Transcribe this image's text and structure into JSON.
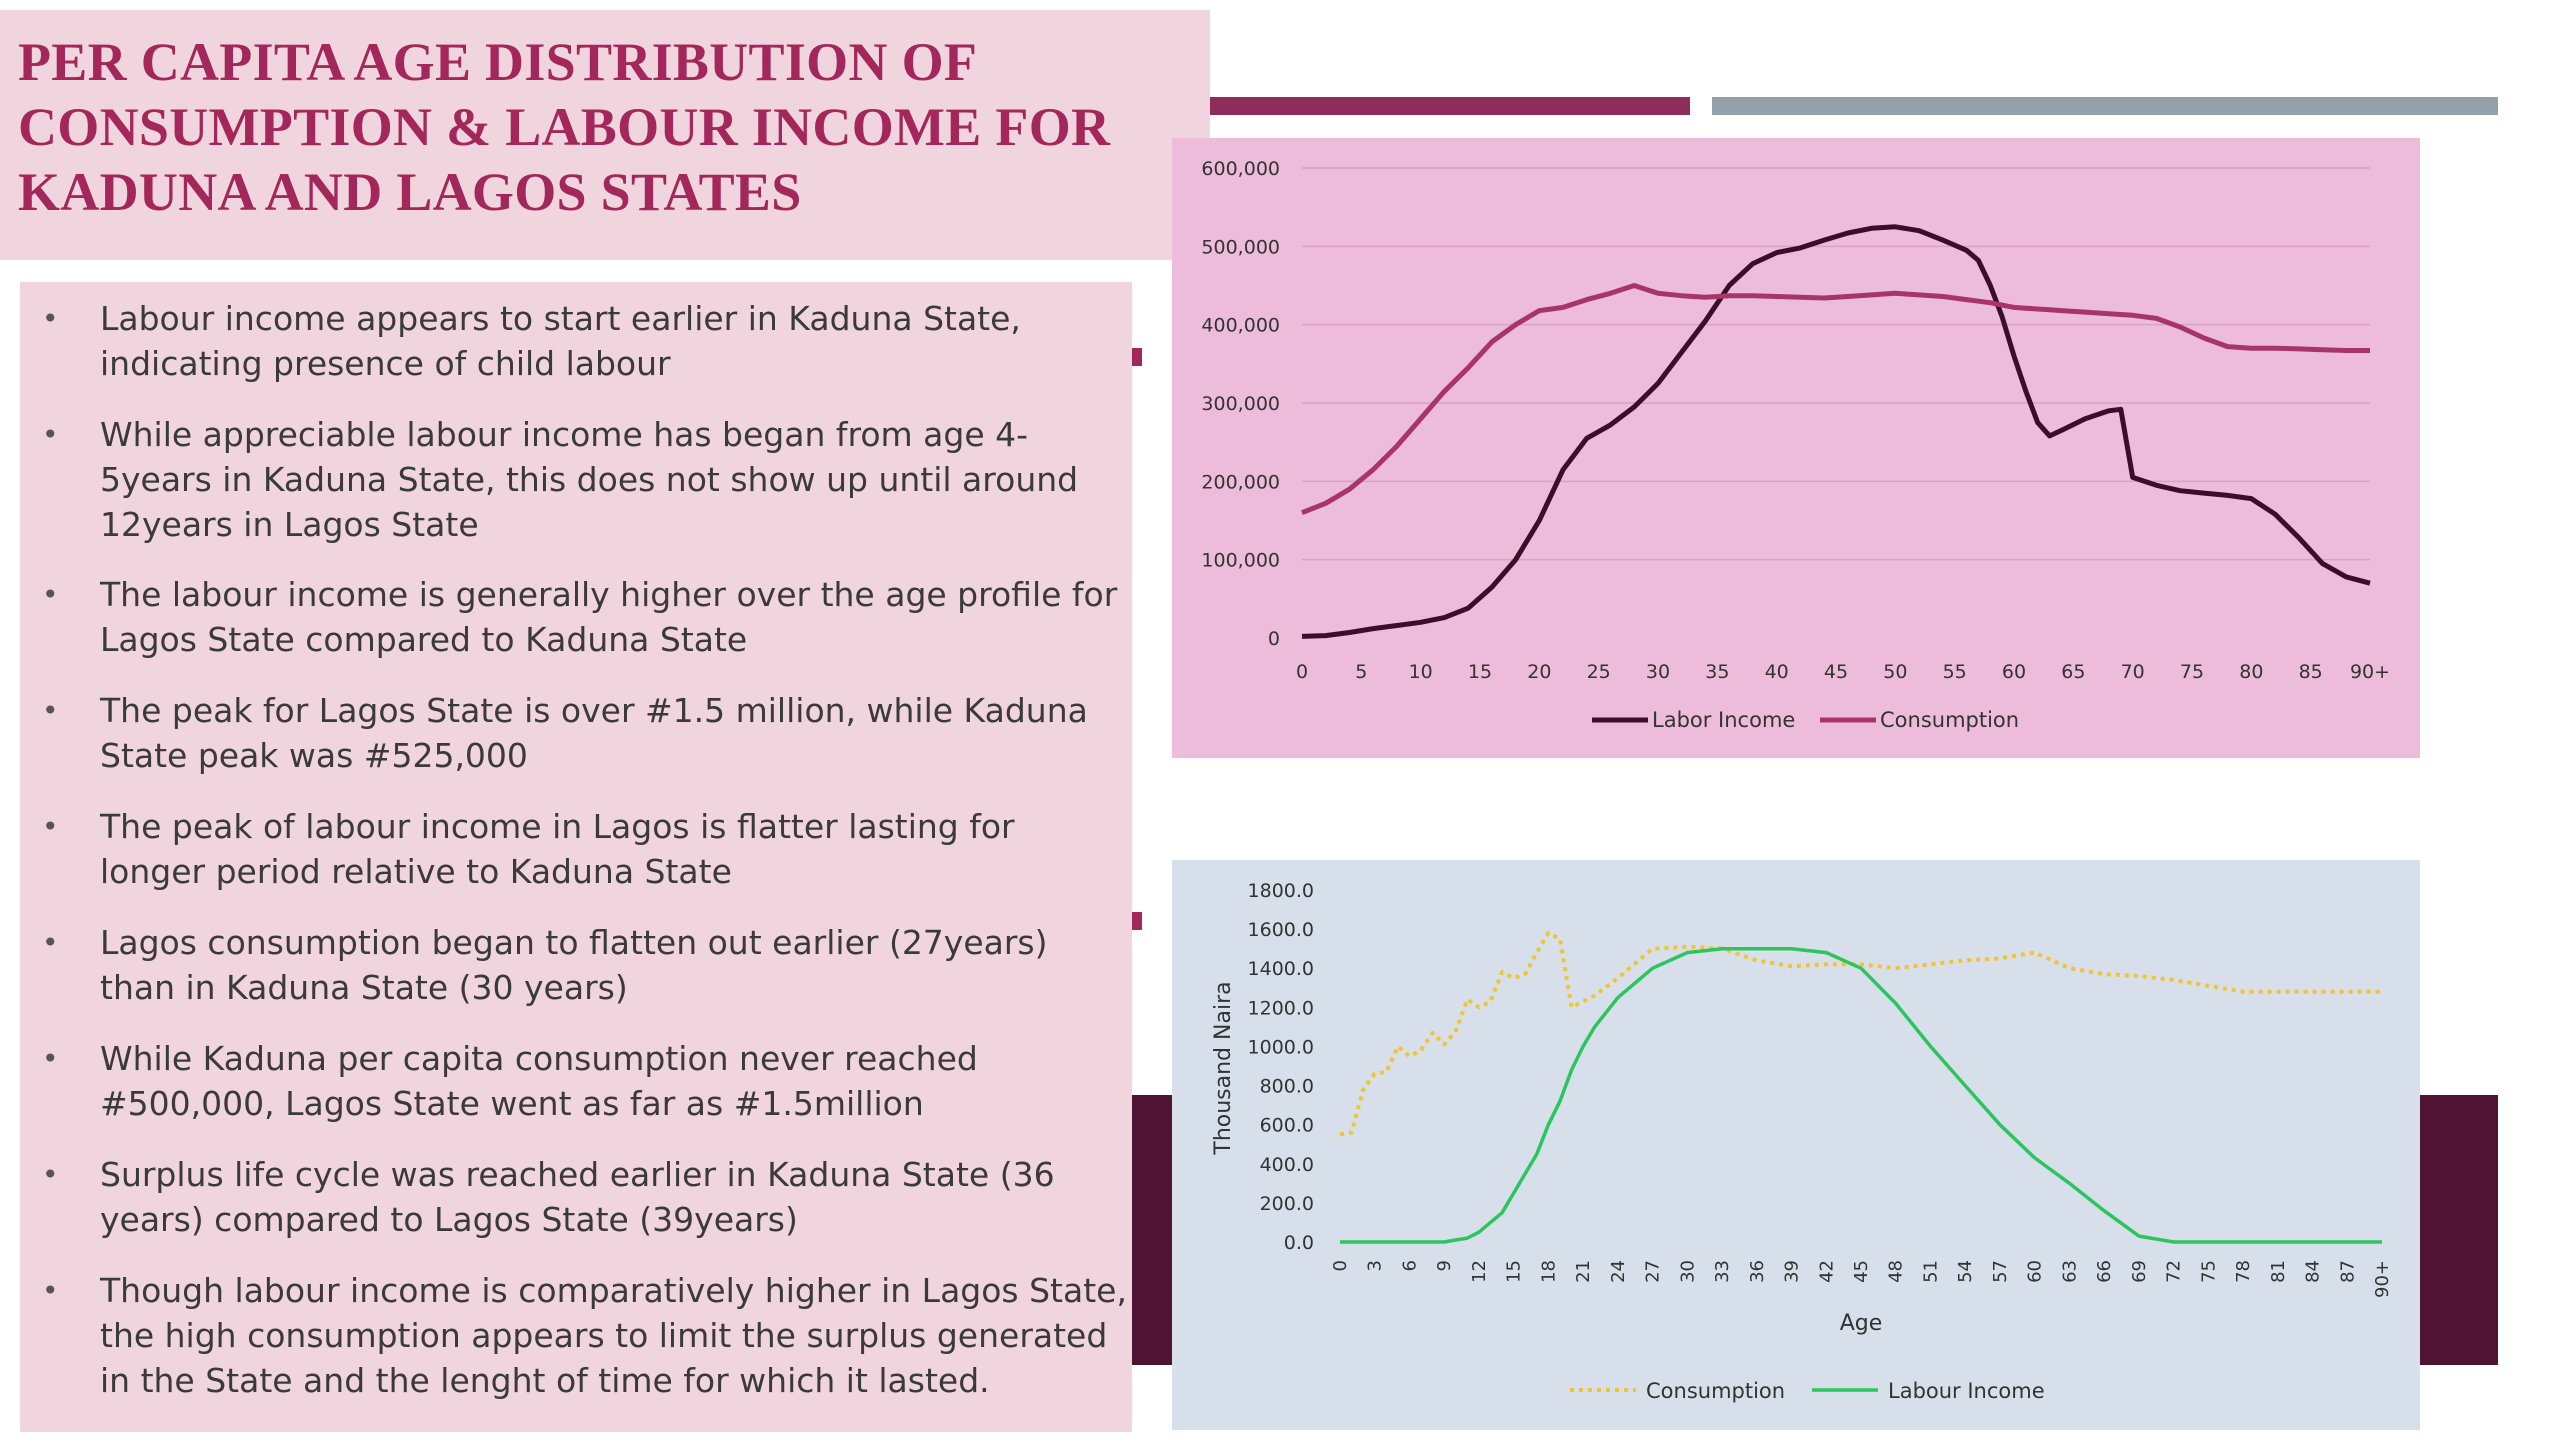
{
  "title": "PER CAPITA AGE DISTRIBUTION OF CONSUMPTION & LABOUR INCOME FOR KADUNA AND LAGOS STATES",
  "colors": {
    "title": "#a3275a",
    "accent_bar_1": "#8e2d5c",
    "accent_bar_2": "#95a1a8",
    "panel_pink": "#f1d5de",
    "chart1_bg": "#ecbcda",
    "chart2_bg": "#d6dfea",
    "dark_block": "#4f1433",
    "labor_income_1": "#3b0d2c",
    "consumption_1": "#a8356a",
    "consumption_2": "#f2c430",
    "labour_income_2": "#2cc55d"
  },
  "bullets": [
    "Labour income appears to start earlier in Kaduna State, indicating presence of child labour",
    "While appreciable labour income has began from age 4-5years in Kaduna State, this does not show up until around 12years in Lagos State",
    "The labour income is generally higher over the age profile for Lagos State compared to Kaduna State",
    "The peak for Lagos State is over #1.5 million, while Kaduna State peak was #525,000",
    "The peak of labour income in Lagos is flatter lasting for longer period relative to Kaduna State",
    "Lagos consumption began to flatten out earlier (27years) than in Kaduna State (30 years)",
    "While Kaduna per capita consumption never reached #500,000, Lagos State went as far as #1.5million",
    "Surplus life cycle was reached earlier in Kaduna State (36 years) compared to Lagos State (39years)",
    "Though labour income is comparatively higher in Lagos State, the high consumption appears to limit the surplus generated in the State and the lenght of time for which it lasted."
  ],
  "chart_data": [
    {
      "type": "line",
      "title": "",
      "xlabel": "",
      "ylabel": "",
      "ylim": [
        0,
        600000
      ],
      "y_ticks": [
        "0",
        "100,000",
        "200,000",
        "300,000",
        "400,000",
        "500,000",
        "600,000"
      ],
      "x_ticks": [
        "0",
        "5",
        "10",
        "15",
        "20",
        "25",
        "30",
        "35",
        "40",
        "45",
        "50",
        "55",
        "60",
        "65",
        "70",
        "75",
        "80",
        "85",
        "90+"
      ],
      "grid": true,
      "legend": "bottom",
      "x": [
        0,
        2,
        4,
        6,
        8,
        10,
        12,
        14,
        16,
        18,
        20,
        22,
        24,
        26,
        28,
        30,
        32,
        34,
        36,
        38,
        40,
        42,
        44,
        46,
        48,
        50,
        52,
        54,
        56,
        57,
        58,
        59,
        60,
        61,
        62,
        63,
        64,
        66,
        68,
        69,
        70,
        72,
        74,
        76,
        78,
        80,
        82,
        84,
        86,
        88,
        90
      ],
      "series": [
        {
          "name": "Labor Income",
          "values": [
            2000,
            3000,
            7000,
            12000,
            16000,
            20000,
            26000,
            38000,
            65000,
            100000,
            150000,
            215000,
            255000,
            272000,
            295000,
            325000,
            365000,
            405000,
            450000,
            478000,
            492000,
            498000,
            508000,
            517000,
            523000,
            525000,
            520000,
            508000,
            495000,
            482000,
            450000,
            410000,
            360000,
            315000,
            275000,
            258000,
            265000,
            280000,
            290000,
            292000,
            205000,
            195000,
            188000,
            185000,
            182000,
            178000,
            158000,
            128000,
            95000,
            78000,
            70000
          ]
        },
        {
          "name": "Consumption",
          "values": [
            160000,
            172000,
            190000,
            215000,
            245000,
            280000,
            315000,
            345000,
            378000,
            400000,
            418000,
            422000,
            432000,
            440000,
            450000,
            440000,
            437000,
            435000,
            437000,
            437000,
            436000,
            435000,
            434000,
            436000,
            438000,
            440000,
            438000,
            436000,
            432000,
            430000,
            428000,
            425000,
            422000,
            421000,
            420000,
            419000,
            418000,
            416000,
            414000,
            413000,
            412000,
            408000,
            397000,
            383000,
            372000,
            370000,
            370000,
            369000,
            368000,
            367000,
            367000
          ]
        }
      ]
    },
    {
      "type": "line",
      "title": "",
      "xlabel": "Age",
      "ylabel": "Thousand Naira",
      "ylim": [
        0,
        1800
      ],
      "y_ticks": [
        "0.0",
        "200.0",
        "400.0",
        "600.0",
        "800.0",
        "1000.0",
        "1200.0",
        "1400.0",
        "1600.0",
        "1800.0"
      ],
      "x_ticks": [
        "0",
        "3",
        "6",
        "9",
        "12",
        "15",
        "18",
        "21",
        "24",
        "27",
        "30",
        "33",
        "36",
        "39",
        "42",
        "45",
        "48",
        "51",
        "54",
        "57",
        "60",
        "63",
        "66",
        "69",
        "72",
        "75",
        "78",
        "81",
        "84",
        "87",
        "90+"
      ],
      "grid": false,
      "legend": "bottom",
      "x": [
        0,
        1,
        2,
        3,
        4,
        5,
        6,
        7,
        8,
        9,
        10,
        11,
        12,
        13,
        14,
        15,
        16,
        17,
        18,
        19,
        20,
        21,
        22,
        24,
        27,
        30,
        33,
        36,
        39,
        42,
        45,
        48,
        51,
        54,
        57,
        60,
        63,
        66,
        69,
        72,
        75,
        78,
        81,
        84,
        87,
        90
      ],
      "series": [
        {
          "name": "Consumption",
          "values": [
            550,
            560,
            780,
            860,
            870,
            1000,
            950,
            980,
            1070,
            1010,
            1080,
            1240,
            1200,
            1230,
            1380,
            1350,
            1370,
            1480,
            1580,
            1550,
            1200,
            1230,
            1260,
            1350,
            1500,
            1510,
            1500,
            1440,
            1410,
            1420,
            1420,
            1400,
            1420,
            1440,
            1450,
            1480,
            1400,
            1370,
            1360,
            1340,
            1310,
            1280,
            1280,
            1280,
            1280,
            1280
          ]
        },
        {
          "name": "Labour Income",
          "values": [
            0,
            0,
            0,
            0,
            0,
            0,
            0,
            0,
            0,
            0,
            10,
            20,
            50,
            100,
            150,
            250,
            350,
            450,
            600,
            720,
            880,
            1000,
            1100,
            1250,
            1400,
            1480,
            1500,
            1500,
            1500,
            1480,
            1400,
            1220,
            1000,
            800,
            600,
            430,
            300,
            160,
            30,
            0,
            0,
            0,
            0,
            0,
            0,
            0
          ]
        }
      ]
    }
  ]
}
